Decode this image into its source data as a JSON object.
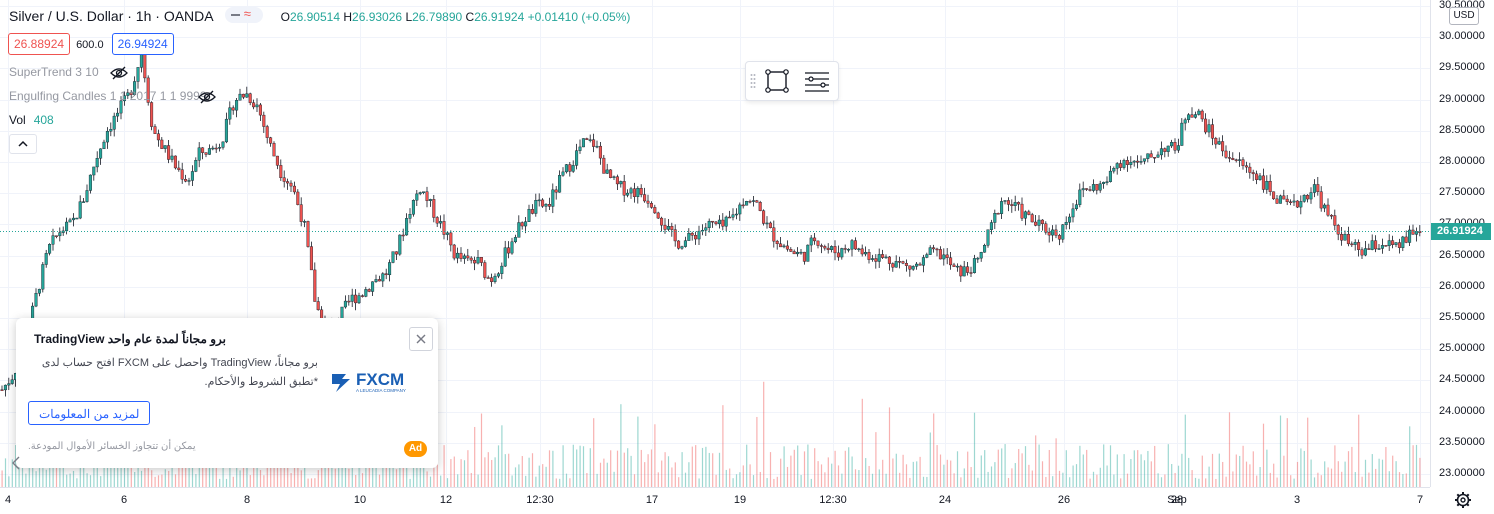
{
  "header": {
    "symbol": "Silver / U.S. Dollar · 1h · OANDA",
    "ohlc": [
      {
        "k": "O",
        "v": "26.90514"
      },
      {
        "k": "H",
        "v": "26.93026"
      },
      {
        "k": "L",
        "v": "26.79890"
      },
      {
        "k": "C",
        "v": "26.91924"
      }
    ],
    "change": "+0.01410 (+0.05%)",
    "bid": "26.88924",
    "spread": "600.0",
    "ask": "26.94924"
  },
  "indicators": {
    "supertrend": "SuperTrend 3 10",
    "engulfing": "Engulfing Candles 1 1 2017 1 1 9999",
    "vol_label": "Vol",
    "vol_value": "408"
  },
  "price_axis": {
    "currency": "USD",
    "current_price": "26.91924",
    "labels": [
      "30.50000",
      "30.00000",
      "29.50000",
      "29.00000",
      "28.50000",
      "28.00000",
      "27.50000",
      "27.00000",
      "26.50000",
      "26.00000",
      "25.50000",
      "25.00000",
      "24.50000",
      "24.00000",
      "23.50000",
      "23.00000"
    ]
  },
  "time_axis": {
    "labels": [
      "4",
      "6",
      "8",
      "10",
      "12",
      "12:30",
      "17",
      "19",
      "12:30",
      "24",
      "26",
      "28",
      "Sep",
      "3",
      "7"
    ]
  },
  "ad": {
    "title": "برو مجاناً لمدة عام واحد TradingView",
    "body": "برو مجاناً، TradingView واحصل على FXCM افتح حساب لدى *تطبق الشروط والأحكام.",
    "cta": "لمزيد من المعلومات",
    "disclaimer": "يمكن أن تتجاوز الخسائر الأموال المودعة.",
    "badge": "Ad",
    "logo_text": "FXCM",
    "logo_sub": "A LEUCADIA COMPANY"
  },
  "colors": {
    "up": "#26a69a",
    "down": "#ef5350",
    "wick": "#131722",
    "accent": "#2962ff",
    "ad_badge": "#ff9800"
  },
  "icons": {
    "compare": "compare-icon",
    "hide": "eye-off-icon",
    "collapse": "chevron-up-icon",
    "rectangle_tool": "rectangle-icon",
    "drawing_settings": "lines-icon",
    "close": "close-icon",
    "axis_settings": "gear-icon"
  },
  "chart_data": {
    "type": "candlestick",
    "price_range": [
      22.88,
      30.5
    ],
    "grid": true,
    "x_labels": [
      "4",
      "6",
      "8",
      "10",
      "12",
      "12:30",
      "17",
      "19",
      "12:30",
      "24",
      "26",
      "28",
      "Sep",
      "3",
      "7"
    ],
    "close_path": [
      24.35,
      24.6,
      25.1,
      25.9,
      26.6,
      26.9,
      27.0,
      27.4,
      28.0,
      28.5,
      28.8,
      29.1,
      29.75,
      28.5,
      28.2,
      27.9,
      27.7,
      28.15,
      28.2,
      28.4,
      29.0,
      29.1,
      28.9,
      28.3,
      27.85,
      27.6,
      27.0,
      25.7,
      25.3,
      25.5,
      25.8,
      25.9,
      26.1,
      26.2,
      26.6,
      27.2,
      27.6,
      27.25,
      26.9,
      26.5,
      26.4,
      26.4,
      26.1,
      26.4,
      26.8,
      27.1,
      27.3,
      27.3,
      27.7,
      28.0,
      28.3,
      28.3,
      27.8,
      27.6,
      27.55,
      27.5,
      27.35,
      27.0,
      26.7,
      26.75,
      26.9,
      27.0,
      26.95,
      27.15,
      27.45,
      27.3,
      26.9,
      26.7,
      26.55,
      26.5,
      26.8,
      26.6,
      26.55,
      26.7,
      26.55,
      26.5,
      26.45,
      26.4,
      26.3,
      26.35,
      26.55,
      26.5,
      26.25,
      26.25,
      26.4,
      26.9,
      27.4,
      27.3,
      27.15,
      27.0,
      26.9,
      26.85,
      27.25,
      27.55,
      27.6,
      27.65,
      28.0,
      28.05,
      27.95,
      28.1,
      28.25,
      28.2,
      28.85,
      28.75,
      28.45,
      28.2,
      28.05,
      27.9,
      27.8,
      27.55,
      27.35,
      27.25,
      27.45,
      27.6,
      27.15,
      26.9,
      26.65,
      26.55,
      26.65,
      26.7,
      26.6,
      26.8,
      26.91924
    ]
  }
}
